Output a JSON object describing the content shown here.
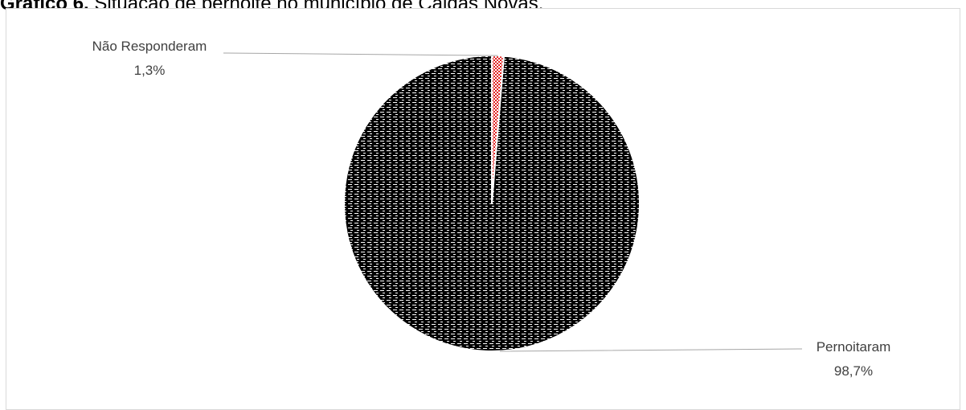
{
  "caption": {
    "prefix": "Gráfico 6.",
    "text": "Situação de pernoite no município de Caldas Novas."
  },
  "colors": {
    "frame_border": "#d9d9d9",
    "leader_line": "#a6a6a6",
    "label_text": "#404040",
    "pernoitaram_pattern": "#000000",
    "nao_responderam_pattern": "#e02020"
  },
  "chart_data": {
    "type": "pie",
    "title": "",
    "categories": [
      "Não Responderam",
      "Pernoitaram"
    ],
    "values": [
      1.3,
      98.7
    ],
    "value_labels": [
      "1,3%",
      "98,7%"
    ],
    "legend": "none",
    "fill": [
      "red dotted pattern",
      "black brick pattern"
    ]
  }
}
